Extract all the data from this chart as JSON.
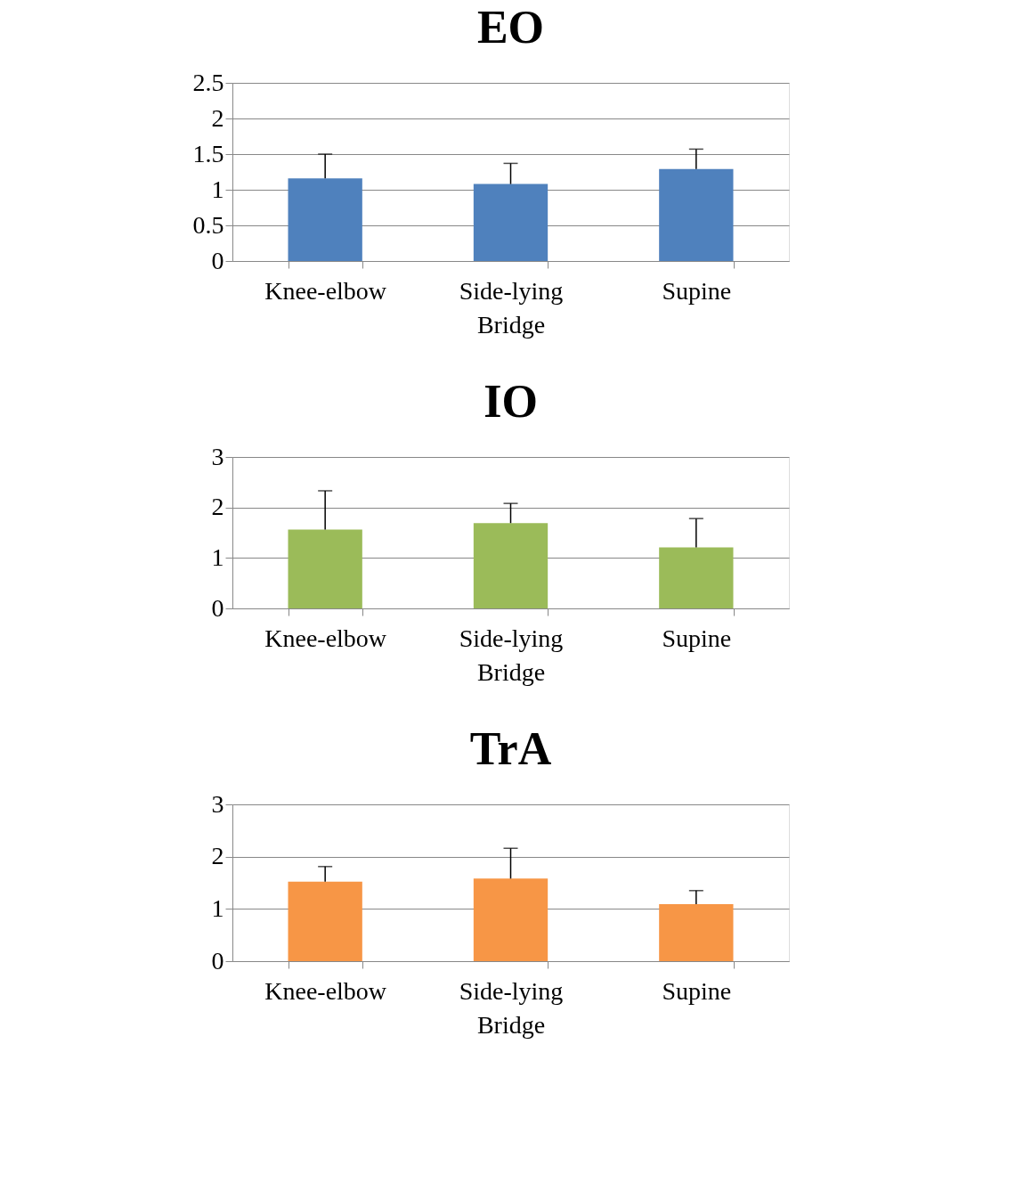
{
  "chart_data": [
    {
      "type": "bar",
      "title": "EO",
      "categories": [
        "Knee-elbow",
        "Side-lying\nBridge",
        "Supine"
      ],
      "values": [
        1.16,
        1.08,
        1.29
      ],
      "errors": [
        [
          1.16,
          1.5
        ],
        [
          1.08,
          1.37
        ],
        [
          1.29,
          1.57
        ]
      ],
      "color": "#4f81bd",
      "ylim": [
        0,
        2.5
      ],
      "yticks": [
        0,
        0.5,
        1,
        1.5,
        2,
        2.5
      ],
      "grid": "y"
    },
    {
      "type": "bar",
      "title": "IO",
      "categories": [
        "Knee-elbow",
        "Side-lying\nBridge",
        "Supine"
      ],
      "values": [
        1.56,
        1.69,
        1.21
      ],
      "errors": [
        [
          1.56,
          2.33
        ],
        [
          1.69,
          2.08
        ],
        [
          1.21,
          1.78
        ]
      ],
      "color": "#9bbb59",
      "ylim": [
        0,
        3
      ],
      "yticks": [
        0,
        1,
        2,
        3
      ],
      "grid": "y"
    },
    {
      "type": "bar",
      "title": "TrA",
      "categories": [
        "Knee-elbow",
        "Side-lying\nBridge",
        "Supine"
      ],
      "values": [
        1.52,
        1.58,
        1.09
      ],
      "errors": [
        [
          1.52,
          1.81
        ],
        [
          1.58,
          2.16
        ],
        [
          1.09,
          1.35
        ]
      ],
      "color": "#f79646",
      "ylim": [
        0,
        3
      ],
      "yticks": [
        0,
        1,
        2,
        3
      ],
      "grid": "y"
    }
  ]
}
